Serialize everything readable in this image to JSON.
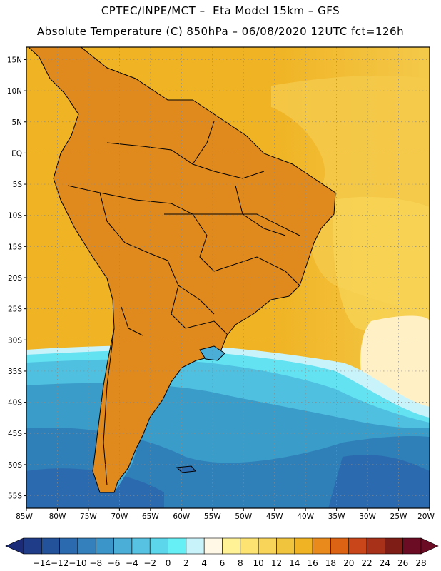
{
  "header": {
    "line1": "CPTEC/INPE/MCT –  Eta Model 15km – GFS",
    "line2": "Absolute Temperature (C) 850hPa – 06/08/2020 12UTC fct=126h"
  },
  "map": {
    "lon_range": [
      -85,
      -20
    ],
    "lat_range": [
      -57,
      17
    ],
    "lat_ticks": [
      {
        "value": 15,
        "label": "15N"
      },
      {
        "value": 10,
        "label": "10N"
      },
      {
        "value": 5,
        "label": "5N"
      },
      {
        "value": 0,
        "label": "EQ"
      },
      {
        "value": -5,
        "label": "5S"
      },
      {
        "value": -10,
        "label": "10S"
      },
      {
        "value": -15,
        "label": "15S"
      },
      {
        "value": -20,
        "label": "20S"
      },
      {
        "value": -25,
        "label": "25S"
      },
      {
        "value": -30,
        "label": "30S"
      },
      {
        "value": -35,
        "label": "35S"
      },
      {
        "value": -40,
        "label": "40S"
      },
      {
        "value": -45,
        "label": "45S"
      },
      {
        "value": -50,
        "label": "50S"
      },
      {
        "value": -55,
        "label": "55S"
      }
    ],
    "lon_ticks": [
      {
        "value": -85,
        "label": "85W"
      },
      {
        "value": -80,
        "label": "80W"
      },
      {
        "value": -75,
        "label": "75W"
      },
      {
        "value": -70,
        "label": "70W"
      },
      {
        "value": -65,
        "label": "65W"
      },
      {
        "value": -60,
        "label": "60W"
      },
      {
        "value": -55,
        "label": "55W"
      },
      {
        "value": -50,
        "label": "50W"
      },
      {
        "value": -45,
        "label": "45W"
      },
      {
        "value": -40,
        "label": "40W"
      },
      {
        "value": -35,
        "label": "35W"
      },
      {
        "value": -30,
        "label": "30W"
      },
      {
        "value": -25,
        "label": "25W"
      },
      {
        "value": -20,
        "label": "20W"
      }
    ],
    "regions": [
      {
        "name": "cold-band-deep-south",
        "lat_max": -43,
        "color": "#2f7fb8"
      },
      {
        "name": "cool-band-patagonia",
        "lat_max": -37,
        "color": "#3a9cc9"
      },
      {
        "name": "cool-band-mid",
        "lat_max": -35.5,
        "color": "#4fc0e0"
      },
      {
        "name": "cyan-band",
        "lat_max": -33.5,
        "color": "#63e2f2"
      },
      {
        "name": "warm-ocean",
        "lat_max": 17,
        "color": "#f0b323"
      }
    ],
    "continent_color": "#e08a1e",
    "hot_core_color": "#c8561c",
    "peak_color": "#9e3a12"
  },
  "colorbar": {
    "colors": [
      "#1f3c88",
      "#23529b",
      "#2b6aae",
      "#3380bd",
      "#3b95c8",
      "#4aaed6",
      "#58c2e2",
      "#5cd6ea",
      "#66f0f6",
      "#c9f3fb",
      "#fff8e6",
      "#fff196",
      "#fde472",
      "#f8d558",
      "#f1c43e",
      "#f0b323",
      "#e88b1c",
      "#dc6313",
      "#c8461a",
      "#a8311a",
      "#7d1d16",
      "#6b0b24"
    ],
    "labels": [
      "-14",
      "-12",
      "-10",
      "-8",
      "-6",
      "-4",
      "-2",
      "0",
      "2",
      "4",
      "6",
      "8",
      "10",
      "12",
      "14",
      "16",
      "18",
      "20",
      "22",
      "24",
      "26",
      "28"
    ]
  }
}
